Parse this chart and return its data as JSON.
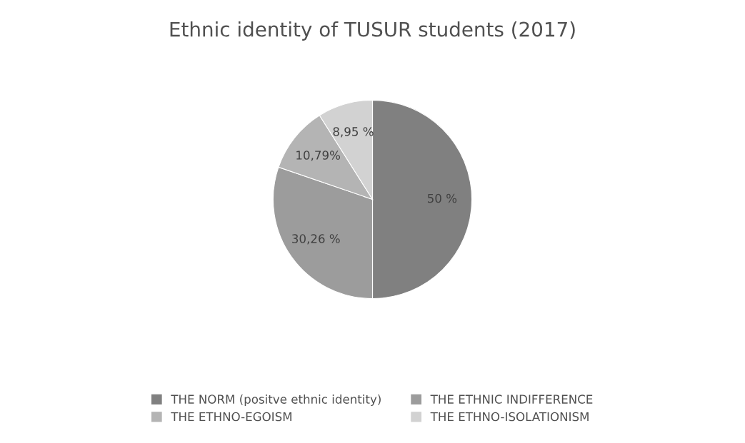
{
  "chart_data": {
    "type": "pie",
    "title": "Ethnic identity of TUSUR students (2017)",
    "categories": [
      "THE NORM (positve ethnic identity)",
      "THE ETHNIC INDIFFERENCE",
      "THE ETHNO-EGOISM",
      "THE ETHNO-ISOLATIONISM"
    ],
    "values": [
      50,
      30.26,
      10.79,
      8.95
    ],
    "value_labels": [
      "50 %",
      "30,26 %",
      "10,79%",
      "8,95 %"
    ],
    "colors": [
      "#808080",
      "#9c9c9c",
      "#b4b4b4",
      "#d2d2d2"
    ],
    "legend": "bottom"
  }
}
